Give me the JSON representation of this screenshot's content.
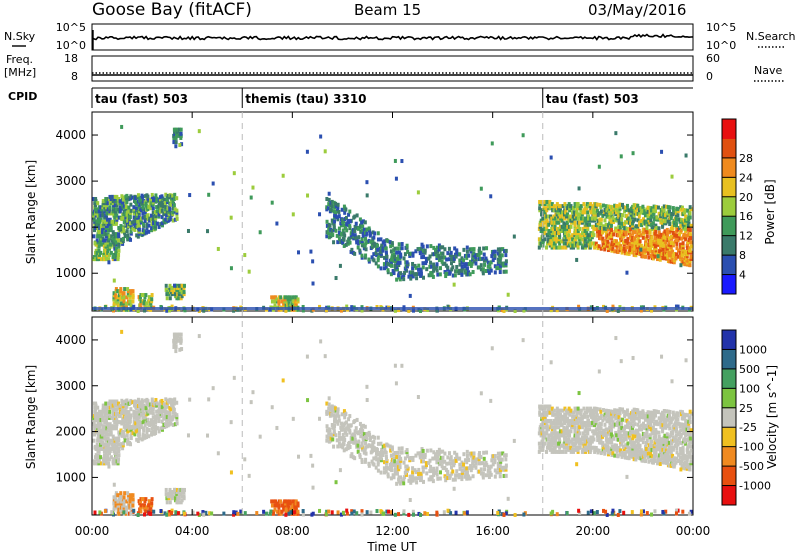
{
  "header": {
    "site": "Goose Bay (fitACF)",
    "beam": "Beam 15",
    "date": "03/May/2016"
  },
  "panels": {
    "nsky_label": "N.Sky",
    "nsearch_label": "N.Search",
    "nsky_ticks": [
      "10^5",
      "10^0"
    ],
    "nsearch_ticks": [
      "10^5",
      "10^0"
    ],
    "freq_label": "Freq.",
    "freq_unit": "[MHz]",
    "freq_ticks": [
      "18",
      "8"
    ],
    "nave_label": "Nave",
    "nave_ticks": [
      "60",
      "0"
    ],
    "cpid_label": "CPID",
    "cpid_segments": [
      {
        "label": "tau (fast) 503",
        "start_hour": 0,
        "end_hour": 6
      },
      {
        "label": "themis (tau) 3310",
        "start_hour": 6,
        "end_hour": 18
      },
      {
        "label": "tau (fast) 503",
        "start_hour": 18,
        "end_hour": 24
      }
    ]
  },
  "colors": {
    "power": [
      "#1a1aff",
      "#2b4fb0",
      "#3a7a6a",
      "#3f9a5a",
      "#9ccc3c",
      "#e8c020",
      "#ef8a1e",
      "#e05010",
      "#e81010"
    ],
    "velocity_gray": "#c4c4bc",
    "velocity_pos": [
      "#2233aa",
      "#2e6a8a",
      "#44a060",
      "#7cc440"
    ],
    "velocity_neg": [
      "#f0c020",
      "#f08a20",
      "#e85010",
      "#e81010"
    ]
  },
  "chart_data": [
    {
      "type": "heatmap",
      "panel": "power",
      "xlabel": "",
      "ylabel": "Slant Range [km]",
      "x_range_hours": [
        0,
        24
      ],
      "ylim": [
        180,
        4500
      ],
      "y_ticks": [
        1000,
        2000,
        3000,
        4000
      ],
      "colorbar_label": "Power [dB]",
      "colorbar_ticks": [
        "4",
        "8",
        "12",
        "16",
        "20",
        "24",
        "28"
      ],
      "features": [
        {
          "desc": "morning band",
          "hours": [
            0,
            3.3
          ],
          "range_km": [
            1300,
            2700
          ]
        },
        {
          "desc": "central arc",
          "hours": [
            9.3,
            16.5
          ],
          "range_km": [
            900,
            2800
          ]
        },
        {
          "desc": "evening band",
          "hours": [
            17.8,
            24
          ],
          "range_km": [
            1200,
            2600
          ]
        }
      ]
    },
    {
      "type": "heatmap",
      "panel": "velocity",
      "xlabel": "Time UT",
      "ylabel": "Slant Range [km]",
      "x_ticks": [
        "00:00",
        "04:00",
        "08:00",
        "12:00",
        "16:00",
        "20:00",
        "00:00"
      ],
      "x_range_hours": [
        0,
        24
      ],
      "ylim": [
        180,
        4500
      ],
      "y_ticks": [
        1000,
        2000,
        3000,
        4000
      ],
      "colorbar_label": "Velocity [m s^-1]",
      "colorbar_ticks": [
        "1000",
        "500",
        "100",
        "25",
        "-25",
        "-100",
        "-500",
        "-1000"
      ]
    }
  ]
}
